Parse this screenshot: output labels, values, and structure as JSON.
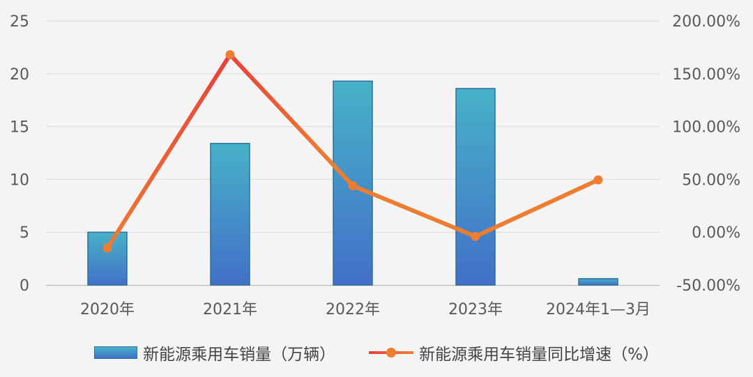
{
  "chart_data": {
    "type": "bar+line",
    "categories": [
      "2020年",
      "2021年",
      "2022年",
      "2023年",
      "2024年1—3月"
    ],
    "series": [
      {
        "name": "新能源乘用车销量（万辆）",
        "type": "bar",
        "axis": "left",
        "values": [
          5.0,
          13.4,
          19.3,
          18.6,
          0.6
        ]
      },
      {
        "name": "新能源乘用车销量同比增速（%）",
        "type": "line",
        "axis": "right",
        "values": [
          -15.0,
          168.0,
          44.0,
          -4.0,
          49.5
        ]
      }
    ],
    "y_left": {
      "min": 0,
      "max": 25,
      "step": 5,
      "ticks": [
        "0",
        "5",
        "10",
        "15",
        "20",
        "25"
      ]
    },
    "y_right": {
      "min": -50,
      "max": 200,
      "step": 50,
      "ticks": [
        "-50.00%",
        "0.00%",
        "50.00%",
        "100.00%",
        "150.00%",
        "200.00%"
      ]
    },
    "grid": true,
    "legend": "bottom",
    "colors": {
      "bar_top": "#47b2c8",
      "bar_bottom": "#4270c8",
      "bar_border": "#2d6e9a",
      "line_start": "#e8403a",
      "line_end": "#ed7d31",
      "marker": "#ed7d31",
      "grid": "#d9d9d9",
      "axis": "#bfbfbf"
    }
  },
  "legend": {
    "bar_label": "新能源乘用车销量（万辆）",
    "line_label": "新能源乘用车销量同比增速（%）"
  }
}
